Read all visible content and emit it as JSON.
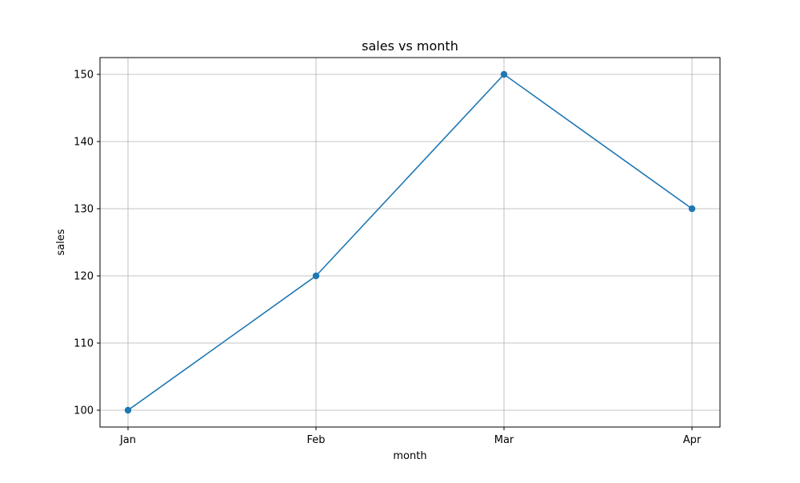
{
  "chart_data": {
    "type": "line",
    "title": "sales vs month",
    "xlabel": "month",
    "ylabel": "sales",
    "categories": [
      "Jan",
      "Feb",
      "Mar",
      "Apr"
    ],
    "series": [
      {
        "values": [
          100,
          120,
          150,
          130
        ],
        "color": "#1f77b4",
        "marker": "circle"
      }
    ],
    "ylim": [
      97.5,
      152.5
    ],
    "yticks": [
      100,
      110,
      120,
      130,
      140,
      150
    ],
    "yticks_labels": [
      "100",
      "110",
      "120",
      "130",
      "140",
      "150"
    ],
    "grid": true,
    "grid_color": "#b0b0b0",
    "legend": false
  }
}
